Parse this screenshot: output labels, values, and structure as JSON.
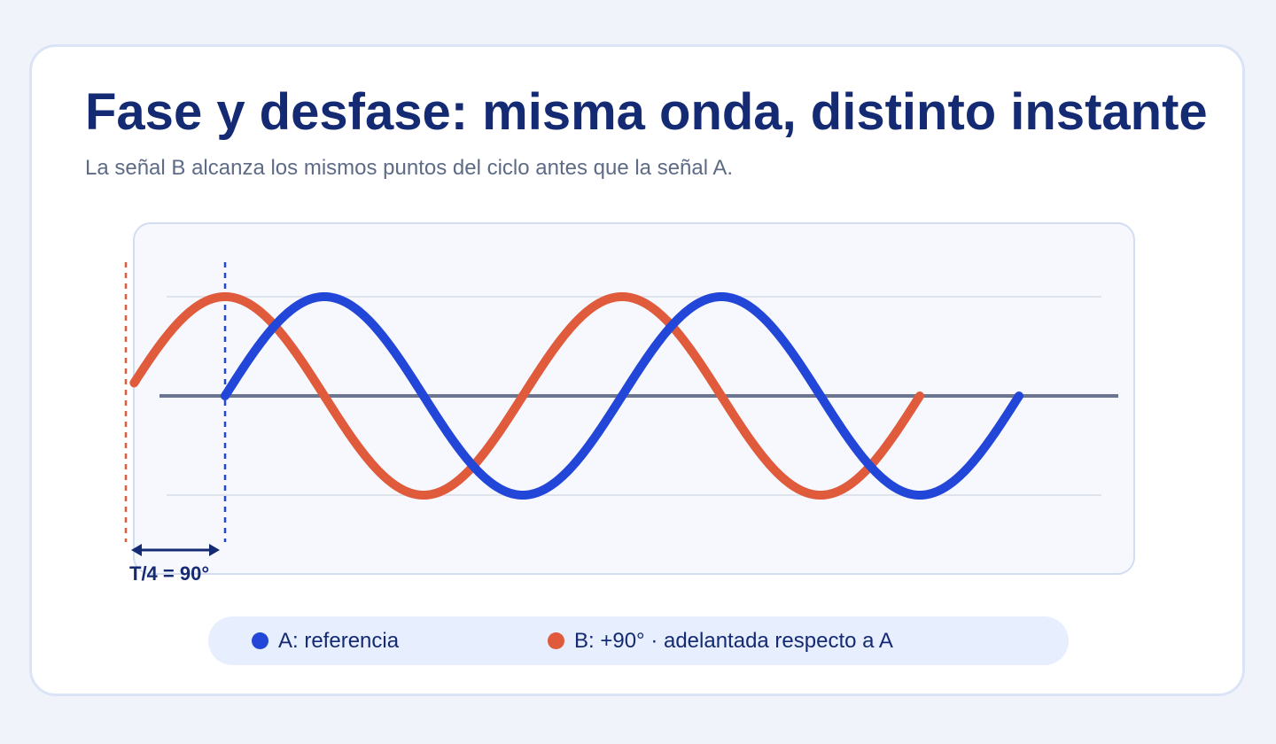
{
  "header": {
    "title": "Fase y desfase: misma onda, distinto instante",
    "subtitle": "La señal B alcanza los mismos puntos del ciclo antes que la señal A."
  },
  "annotation": {
    "shift_label": "T/4 = 90°"
  },
  "legend": {
    "items": [
      {
        "label": "A: referencia",
        "color": "#2246d8"
      },
      {
        "label": "B: +90° · adelantada respecto a A",
        "color": "#e05a3c"
      }
    ]
  },
  "colors": {
    "signal_a": "#2246d8",
    "signal_b": "#e05a3c",
    "axis": "#6b7591",
    "grid": "#dfe3ec",
    "marker": "#142a73"
  },
  "chart_data": {
    "type": "line",
    "x_unit": "cycles",
    "series": [
      {
        "name": "A: referencia",
        "phase_deg": 0,
        "x_start": 0,
        "x_end": 2,
        "amplitude": 1
      },
      {
        "name": "B: +90° · adelantada respecto a A",
        "phase_deg": 90,
        "x_start": -0.25,
        "x_end": 1.75,
        "amplitude": 1
      }
    ],
    "phase_shift_cycles": 0.25,
    "grid": true
  }
}
